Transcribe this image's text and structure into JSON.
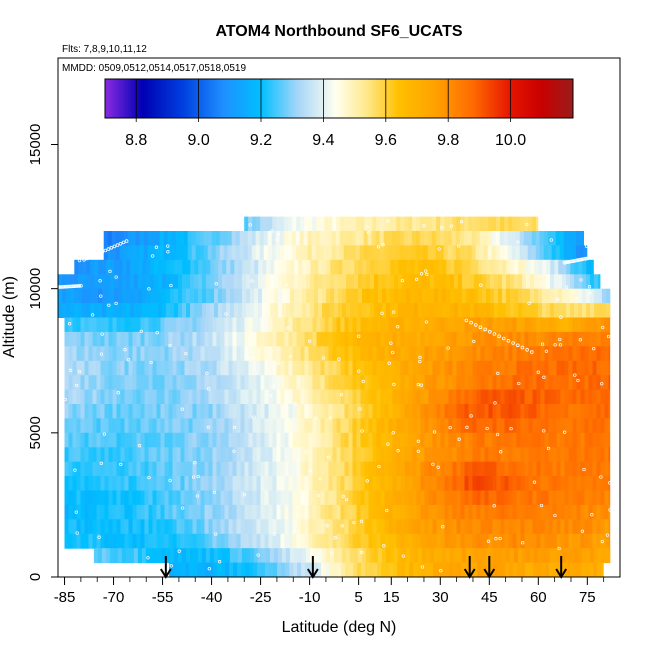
{
  "header": {
    "title": "ATOM4 Northbound SF6_UCATS",
    "flights_note": "Flts: 7,8,9,10,11,12",
    "dates_note": "MMDD: 0509,0512,0514,0517,0518,0519"
  },
  "chart_data": {
    "type": "heatmap",
    "title": "ATOM4 Northbound SF6_UCATS",
    "xlabel": "Latitude (deg N)",
    "ylabel": "Altitude (m)",
    "xlim": [
      -87,
      85
    ],
    "ylim": [
      0,
      18000
    ],
    "x_ticks": [
      -85,
      -70,
      -55,
      -40,
      -25,
      -10,
      5,
      15,
      30,
      45,
      60,
      75
    ],
    "x_minor_ticks": [
      -80,
      -75,
      -65,
      -60,
      -50,
      -45,
      -35,
      -30,
      -20,
      -15,
      -5,
      0,
      10,
      20,
      25,
      35,
      40,
      50,
      55,
      65,
      70,
      80
    ],
    "y_ticks": [
      0,
      5000,
      10000,
      15000
    ],
    "colorbar": {
      "range": [
        8.7,
        10.2
      ],
      "ticks": [
        8.8,
        9.0,
        9.2,
        9.4,
        9.6,
        9.8,
        10.0
      ],
      "stops": [
        {
          "v": 8.7,
          "color": "#8a2be2"
        },
        {
          "v": 8.82,
          "color": "#0000b4"
        },
        {
          "v": 8.95,
          "color": "#0040e0"
        },
        {
          "v": 9.08,
          "color": "#1e90ff"
        },
        {
          "v": 9.2,
          "color": "#00bfff"
        },
        {
          "v": 9.32,
          "color": "#a8d6f8"
        },
        {
          "v": 9.44,
          "color": "#fffff0"
        },
        {
          "v": 9.54,
          "color": "#ffe88a"
        },
        {
          "v": 9.64,
          "color": "#ffc000"
        },
        {
          "v": 9.76,
          "color": "#ffa000"
        },
        {
          "v": 9.88,
          "color": "#ff6a00"
        },
        {
          "v": 10.0,
          "color": "#e61400"
        },
        {
          "v": 10.1,
          "color": "#c80000"
        },
        {
          "v": 10.2,
          "color": "#9b1c1c"
        }
      ]
    },
    "arrows_lat": [
      -54,
      -9,
      39,
      45,
      67
    ],
    "grid": false,
    "legend": "colorbar top",
    "field_rows": [
      {
        "alt": 12250,
        "lat_min": -30,
        "lat_max": 60,
        "values": [
          9.28,
          9.42,
          9.48,
          9.52,
          9.55,
          9.58,
          9.55
        ]
      },
      {
        "alt": 11750,
        "lat_min": -73,
        "lat_max": 74,
        "values": [
          9.05,
          9.12,
          9.2,
          9.3,
          9.4,
          9.48,
          9.52,
          9.56,
          9.58,
          9.54,
          9.4,
          9.25,
          9.1
        ]
      },
      {
        "alt": 11250,
        "lat_min": -73,
        "lat_max": 75,
        "values": [
          9.08,
          9.15,
          9.22,
          9.32,
          9.42,
          9.5,
          9.55,
          9.6,
          9.6,
          9.56,
          9.42,
          9.25,
          9.05
        ]
      },
      {
        "alt": 10750,
        "lat_min": -82,
        "lat_max": 77,
        "values": [
          9.1,
          9.12,
          9.18,
          9.26,
          9.36,
          9.46,
          9.55,
          9.62,
          9.64,
          9.6,
          9.5,
          9.38,
          9.15
        ]
      },
      {
        "alt": 10250,
        "lat_min": -87,
        "lat_max": 79,
        "values": [
          9.1,
          9.1,
          9.14,
          9.24,
          9.36,
          9.47,
          9.56,
          9.63,
          9.66,
          9.62,
          9.55,
          9.4,
          9.2
        ]
      },
      {
        "alt": 9750,
        "lat_min": -87,
        "lat_max": 82,
        "values": [
          9.12,
          9.1,
          9.16,
          9.25,
          9.36,
          9.48,
          9.58,
          9.65,
          9.68,
          9.65,
          9.58,
          9.5,
          9.3
        ]
      },
      {
        "alt": 9250,
        "lat_min": -87,
        "lat_max": 82,
        "values": [
          9.15,
          9.14,
          9.18,
          9.28,
          9.4,
          9.5,
          9.6,
          9.66,
          9.7,
          9.68,
          9.62,
          9.55,
          9.6
        ]
      },
      {
        "alt": 8750,
        "lat_min": -85,
        "lat_max": 82,
        "values": [
          9.25,
          9.22,
          9.26,
          9.32,
          9.42,
          9.52,
          9.62,
          9.68,
          9.72,
          9.76,
          9.75,
          9.7,
          9.8
        ]
      },
      {
        "alt": 8250,
        "lat_min": -85,
        "lat_max": 82,
        "values": [
          9.3,
          9.28,
          9.3,
          9.34,
          9.44,
          9.54,
          9.64,
          9.7,
          9.74,
          9.78,
          9.8,
          9.82,
          9.85
        ]
      },
      {
        "alt": 7750,
        "lat_min": -85,
        "lat_max": 82,
        "values": [
          9.32,
          9.3,
          9.3,
          9.34,
          9.42,
          9.52,
          9.62,
          9.7,
          9.76,
          9.8,
          9.84,
          9.86,
          9.88
        ]
      },
      {
        "alt": 7250,
        "lat_min": -85,
        "lat_max": 82,
        "values": [
          9.33,
          9.3,
          9.3,
          9.32,
          9.4,
          9.5,
          9.6,
          9.68,
          9.76,
          9.82,
          9.86,
          9.87,
          9.88
        ]
      },
      {
        "alt": 6750,
        "lat_min": -85,
        "lat_max": 82,
        "values": [
          9.33,
          9.3,
          9.29,
          9.32,
          9.38,
          9.48,
          9.58,
          9.68,
          9.76,
          9.84,
          9.88,
          9.86,
          9.88
        ]
      },
      {
        "alt": 6250,
        "lat_min": -85,
        "lat_max": 82,
        "values": [
          9.32,
          9.3,
          9.28,
          9.32,
          9.38,
          9.46,
          9.56,
          9.66,
          9.78,
          9.9,
          9.9,
          9.87,
          9.88
        ]
      },
      {
        "alt": 5750,
        "lat_min": -85,
        "lat_max": 82,
        "values": [
          9.3,
          9.28,
          9.28,
          9.3,
          9.36,
          9.44,
          9.54,
          9.66,
          9.8,
          9.92,
          9.9,
          9.86,
          9.88
        ]
      },
      {
        "alt": 5250,
        "lat_min": -85,
        "lat_max": 82,
        "values": [
          9.28,
          9.26,
          9.27,
          9.3,
          9.36,
          9.44,
          9.56,
          9.68,
          9.8,
          9.88,
          9.88,
          9.85,
          9.86
        ]
      },
      {
        "alt": 4750,
        "lat_min": -85,
        "lat_max": 82,
        "values": [
          9.26,
          9.25,
          9.27,
          9.3,
          9.36,
          9.44,
          9.56,
          9.68,
          9.78,
          9.84,
          9.86,
          9.84,
          9.86
        ]
      },
      {
        "alt": 4250,
        "lat_min": -85,
        "lat_max": 82,
        "values": [
          9.24,
          9.24,
          9.26,
          9.3,
          9.36,
          9.44,
          9.56,
          9.68,
          9.78,
          9.84,
          9.85,
          9.84,
          9.86
        ]
      },
      {
        "alt": 3750,
        "lat_min": -85,
        "lat_max": 82,
        "values": [
          9.24,
          9.24,
          9.26,
          9.3,
          9.36,
          9.44,
          9.56,
          9.68,
          9.8,
          9.9,
          9.86,
          9.84,
          9.84
        ]
      },
      {
        "alt": 3250,
        "lat_min": -85,
        "lat_max": 82,
        "values": [
          9.22,
          9.22,
          9.25,
          9.3,
          9.36,
          9.44,
          9.56,
          9.68,
          9.8,
          9.94,
          9.88,
          9.84,
          9.84
        ]
      },
      {
        "alt": 2750,
        "lat_min": -85,
        "lat_max": 82,
        "values": [
          9.2,
          9.2,
          9.24,
          9.3,
          9.36,
          9.44,
          9.56,
          9.68,
          9.8,
          9.88,
          9.86,
          9.84,
          9.82
        ]
      },
      {
        "alt": 2250,
        "lat_min": -85,
        "lat_max": 82,
        "values": [
          9.18,
          9.2,
          9.24,
          9.3,
          9.36,
          9.44,
          9.56,
          9.68,
          9.78,
          9.84,
          9.84,
          9.82,
          9.8
        ]
      },
      {
        "alt": 1750,
        "lat_min": -85,
        "lat_max": 82,
        "values": [
          9.2,
          9.2,
          9.22,
          9.28,
          9.36,
          9.44,
          9.56,
          9.68,
          9.76,
          9.82,
          9.82,
          9.8,
          9.78
        ]
      },
      {
        "alt": 1250,
        "lat_min": -85,
        "lat_max": 82,
        "values": [
          9.22,
          9.2,
          9.2,
          9.26,
          9.34,
          9.44,
          9.56,
          9.66,
          9.74,
          9.8,
          9.8,
          9.78,
          9.76
        ]
      },
      {
        "alt": 750,
        "lat_min": -76,
        "lat_max": 82,
        "values": [
          9.28,
          9.24,
          9.18,
          9.22,
          9.3,
          9.42,
          9.56,
          9.66,
          9.72,
          9.76,
          9.76,
          9.76,
          9.74
        ]
      },
      {
        "alt": 250,
        "lat_min": -53,
        "lat_max": 80,
        "values": [
          9.18,
          9.16,
          9.2,
          9.28,
          9.4,
          9.56,
          9.64,
          9.7,
          9.74,
          9.74,
          9.72,
          9.72,
          9.7
        ]
      }
    ]
  }
}
